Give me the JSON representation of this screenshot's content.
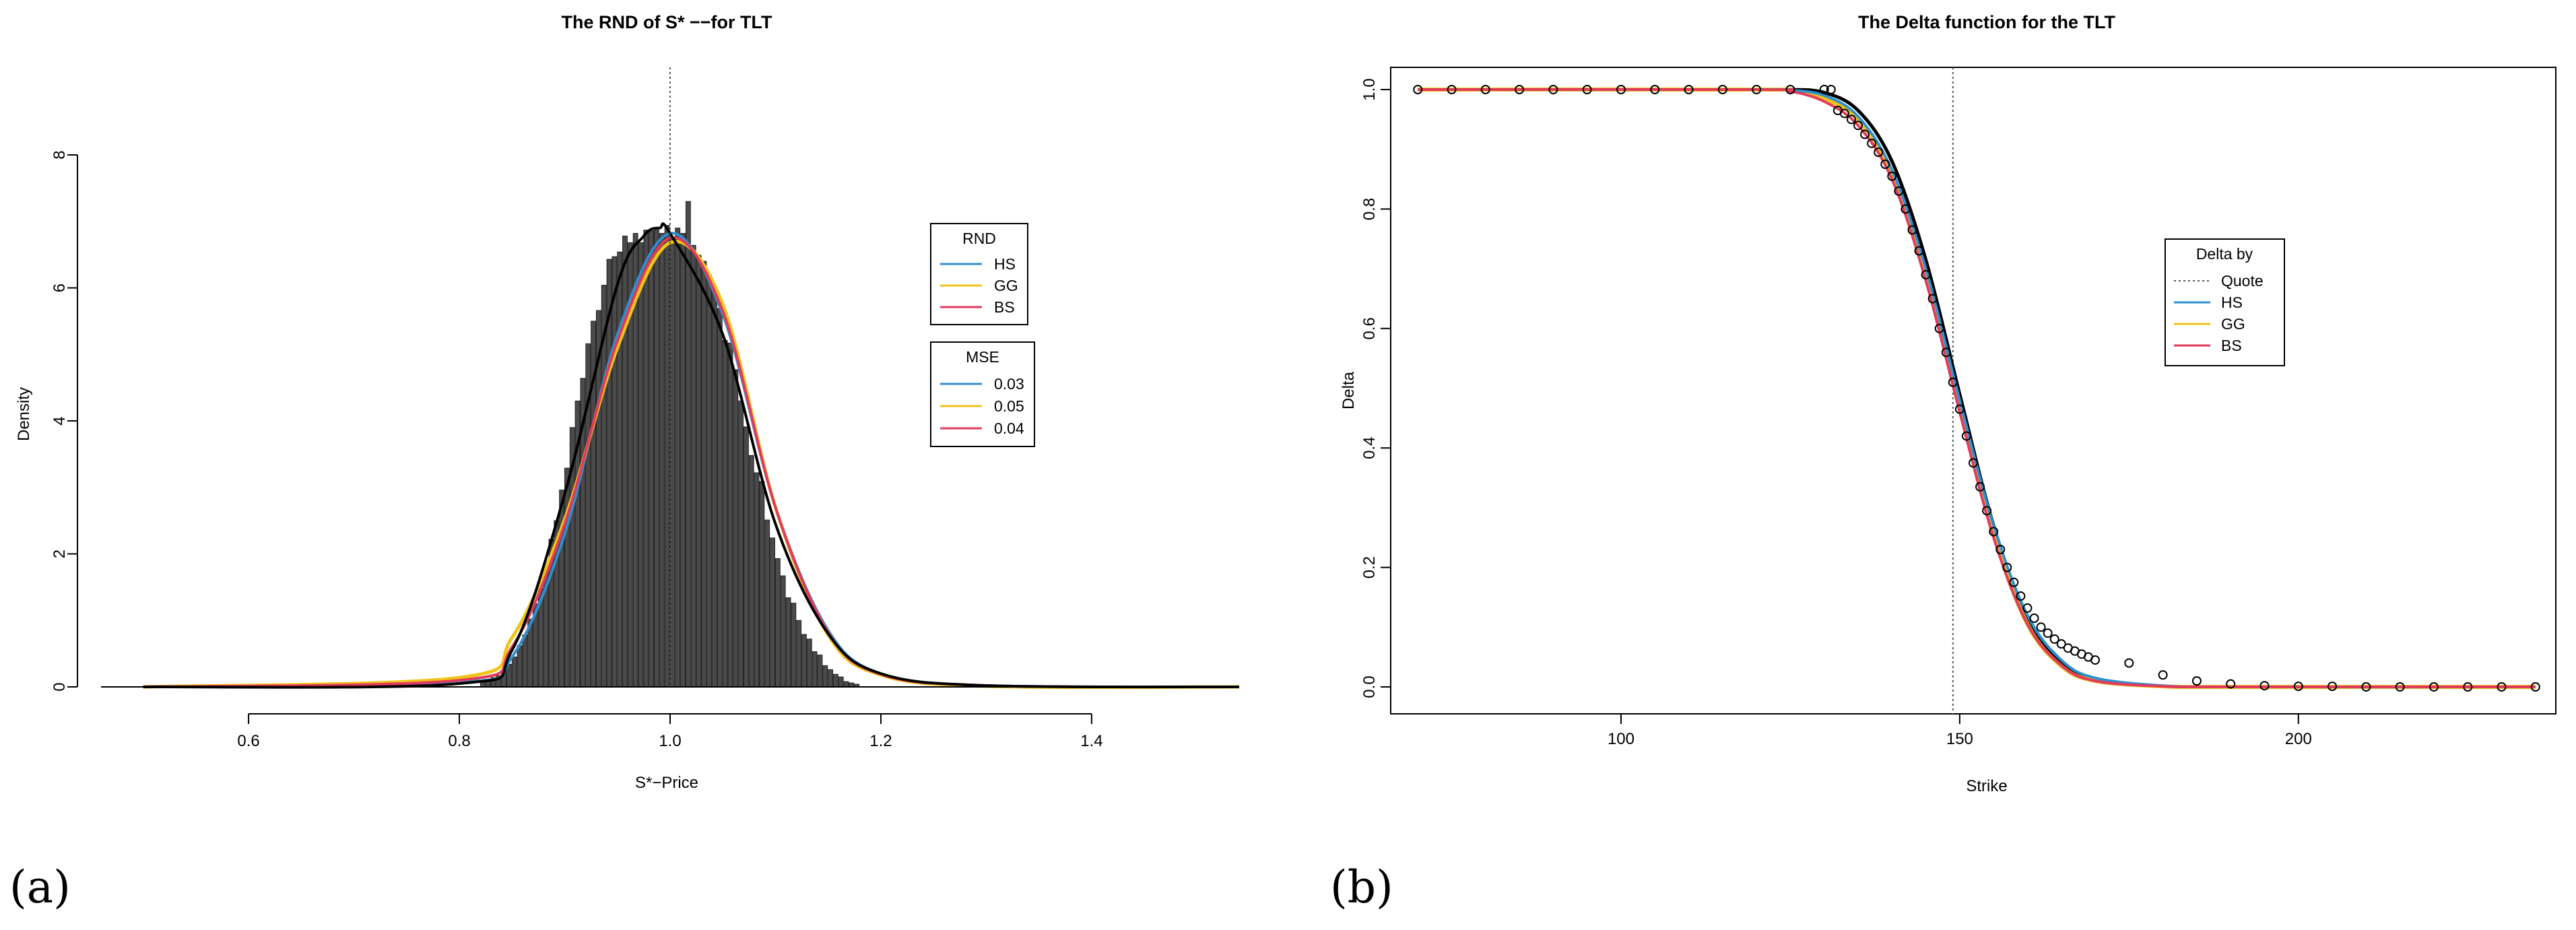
{
  "panel_labels": {
    "a": "(a)",
    "b": "(b)"
  },
  "colors": {
    "HS": "#2f8fcf",
    "GG": "#f0c419",
    "BS": "#e23a5c",
    "bars": "#4a4a4a",
    "fit": "#000000"
  },
  "chart_data": [
    {
      "type": "bar",
      "title": "The RND of S* −−for TLT",
      "xlabel": "S*−Price",
      "ylabel": "Density",
      "xlim": [
        0.46,
        1.54
      ],
      "ylim": [
        0,
        8
      ],
      "xticks": [
        "0.6",
        "0.8",
        "1.0",
        "1.2",
        "1.4"
      ],
      "yticks": [
        "0",
        "2",
        "4",
        "6",
        "8"
      ],
      "vline_x": 1.0,
      "grid": false,
      "legend_position": "right",
      "legend": {
        "title": "RND",
        "items": [
          "HS",
          "GG",
          "BS"
        ]
      },
      "legend_mse": {
        "title": "MSE",
        "items": [
          "0.03",
          "0.05",
          "0.04"
        ]
      },
      "histogram": {
        "bin_width": 0.005,
        "bin_centers": [
          0.8225,
          0.8275,
          0.8325,
          0.8375,
          0.8425,
          0.8475,
          0.8525,
          0.8575,
          0.8625,
          0.8675,
          0.8725,
          0.8775,
          0.8825,
          0.8875,
          0.8925,
          0.8975,
          0.9025,
          0.9075,
          0.9125,
          0.9175,
          0.9225,
          0.9275,
          0.9325,
          0.9375,
          0.9425,
          0.9475,
          0.9525,
          0.9575,
          0.9625,
          0.9675,
          0.9725,
          0.9775,
          0.9825,
          0.9875,
          0.9925,
          0.9975,
          1.0025,
          1.0075,
          1.0125,
          1.0175,
          1.0225,
          1.0275,
          1.0325,
          1.0375,
          1.0425,
          1.0475,
          1.0525,
          1.0575,
          1.0625,
          1.0675,
          1.0725,
          1.0775,
          1.0825,
          1.0875,
          1.0925,
          1.0975,
          1.1025,
          1.1075,
          1.1125,
          1.1175,
          1.1225,
          1.1275,
          1.1325,
          1.1375,
          1.1425,
          1.1475,
          1.1525,
          1.1575,
          1.1625,
          1.1675,
          1.1725,
          1.1775
        ],
        "densities": [
          0.07,
          0.1,
          0.14,
          0.17,
          0.24,
          0.34,
          0.45,
          0.62,
          0.78,
          1.02,
          1.25,
          1.48,
          1.78,
          2.22,
          2.5,
          2.96,
          3.29,
          3.9,
          4.3,
          4.64,
          5.16,
          5.5,
          5.66,
          6.04,
          6.43,
          6.47,
          6.54,
          6.78,
          6.68,
          6.82,
          6.68,
          6.87,
          6.86,
          6.87,
          6.82,
          6.94,
          6.74,
          6.9,
          6.82,
          7.3,
          6.64,
          6.49,
          6.4,
          6.19,
          5.94,
          5.69,
          5.21,
          5.17,
          4.77,
          4.3,
          3.91,
          3.48,
          3.22,
          3.09,
          2.51,
          2.24,
          1.93,
          1.67,
          1.34,
          1.26,
          1.0,
          0.79,
          0.72,
          0.53,
          0.48,
          0.32,
          0.26,
          0.19,
          0.15,
          0.08,
          0.06,
          0.04
        ]
      },
      "series": [
        {
          "name": "HS",
          "x": [
            0.5,
            0.8,
            0.85,
            0.9,
            0.95,
            1.0,
            1.05,
            1.1,
            1.15,
            1.2,
            1.3,
            1.54
          ],
          "y": [
            0.0,
            0.07,
            0.45,
            2.3,
            5.3,
            6.82,
            5.6,
            2.7,
            0.85,
            0.2,
            0.02,
            0.0
          ]
        },
        {
          "name": "GG",
          "x": [
            0.5,
            0.8,
            0.85,
            0.9,
            0.95,
            1.0,
            1.05,
            1.1,
            1.15,
            1.2,
            1.3,
            1.54
          ],
          "y": [
            0.0,
            0.14,
            0.74,
            2.52,
            5.1,
            6.68,
            5.75,
            2.7,
            0.78,
            0.18,
            0.01,
            0.0
          ]
        },
        {
          "name": "BS",
          "x": [
            0.5,
            0.8,
            0.85,
            0.9,
            0.95,
            1.0,
            1.05,
            1.1,
            1.15,
            1.2,
            1.3,
            1.54
          ],
          "y": [
            0.0,
            0.1,
            0.6,
            2.45,
            5.2,
            6.75,
            5.65,
            2.7,
            0.82,
            0.19,
            0.02,
            0.0
          ]
        },
        {
          "x": [
            0.5,
            0.8,
            0.85,
            0.9,
            0.95,
            0.975,
            0.99,
            1.0,
            1.05,
            1.1,
            1.15,
            1.2,
            1.3,
            1.54
          ],
          "y": [
            0.0,
            0.05,
            0.55,
            2.9,
            6.05,
            6.78,
            6.9,
            6.82,
            5.3,
            2.45,
            0.8,
            0.2,
            0.02,
            0.0
          ]
        }
      ]
    },
    {
      "type": "line",
      "title": "The Delta function for the TLT",
      "xlabel": "Strike",
      "ylabel": "Delta",
      "xlim": [
        66,
        238
      ],
      "ylim": [
        0,
        1
      ],
      "xticks": [
        "100",
        "150",
        "200"
      ],
      "yticks": [
        "0.0",
        "0.2",
        "0.4",
        "0.6",
        "0.8",
        "1.0"
      ],
      "vline_x": 149,
      "grid": false,
      "legend_position": "right",
      "legend": {
        "title": "Delta by",
        "items": [
          "Quote",
          "HS",
          "GG",
          "BS"
        ]
      },
      "quote_points": {
        "x": [
          70,
          75,
          80,
          85,
          90,
          95,
          100,
          105,
          110,
          115,
          120,
          125,
          130,
          131,
          132,
          133,
          134,
          135,
          136,
          137,
          138,
          139,
          140,
          141,
          142,
          143,
          144,
          145,
          146,
          147,
          148,
          149,
          150,
          151,
          152,
          153,
          154,
          155,
          156,
          157,
          158,
          159,
          160,
          161,
          162,
          163,
          164,
          165,
          166,
          167,
          168,
          169,
          170,
          175,
          180,
          185,
          190,
          195,
          200,
          205,
          210,
          215,
          220,
          225,
          230,
          235
        ],
        "y": [
          1.0,
          1.0,
          1.0,
          1.0,
          1.0,
          1.0,
          1.0,
          1.0,
          1.0,
          1.0,
          1.0,
          1.0,
          1.0,
          1.0,
          0.965,
          0.96,
          0.95,
          0.94,
          0.925,
          0.91,
          0.895,
          0.875,
          0.855,
          0.83,
          0.8,
          0.765,
          0.73,
          0.69,
          0.65,
          0.6,
          0.56,
          0.51,
          0.465,
          0.42,
          0.375,
          0.335,
          0.295,
          0.26,
          0.23,
          0.2,
          0.175,
          0.152,
          0.132,
          0.115,
          0.1,
          0.09,
          0.08,
          0.072,
          0.065,
          0.06,
          0.055,
          0.05,
          0.045,
          0.04,
          0.02,
          0.01,
          0.005,
          0.002,
          0.001,
          0.001,
          0.0,
          0.0,
          0.0,
          0.0,
          0.0,
          0.0
        ]
      },
      "series": [
        {
          "name": "HS",
          "x": [
            70,
            120,
            125,
            130,
            135,
            140,
            145,
            150,
            155,
            160,
            165,
            170,
            180,
            190,
            235
          ],
          "y": [
            1.0,
            1.0,
            0.999,
            0.99,
            0.955,
            0.865,
            0.7,
            0.48,
            0.27,
            0.12,
            0.045,
            0.015,
            0.002,
            0.0,
            0.0
          ]
        },
        {
          "name": "GG",
          "x": [
            70,
            120,
            125,
            130,
            135,
            140,
            145,
            150,
            155,
            160,
            165,
            170,
            180,
            190,
            235
          ],
          "y": [
            1.0,
            1.0,
            0.998,
            0.985,
            0.95,
            0.86,
            0.69,
            0.47,
            0.255,
            0.105,
            0.035,
            0.01,
            0.001,
            0.0,
            0.0
          ]
        },
        {
          "name": "BS",
          "x": [
            70,
            120,
            125,
            130,
            135,
            140,
            145,
            150,
            155,
            160,
            165,
            170,
            180,
            190,
            235
          ],
          "y": [
            1.0,
            1.0,
            0.997,
            0.98,
            0.94,
            0.85,
            0.68,
            0.46,
            0.25,
            0.105,
            0.036,
            0.01,
            0.001,
            0.0,
            0.0
          ]
        },
        {
          "x": [
            70,
            120,
            125,
            130,
            135,
            140,
            145,
            150,
            155,
            160,
            165,
            170,
            180,
            190,
            235
          ],
          "y": [
            1.0,
            1.0,
            1.0,
            0.995,
            0.965,
            0.88,
            0.715,
            0.49,
            0.27,
            0.115,
            0.04,
            0.012,
            0.001,
            0.0,
            0.0
          ]
        }
      ]
    }
  ]
}
